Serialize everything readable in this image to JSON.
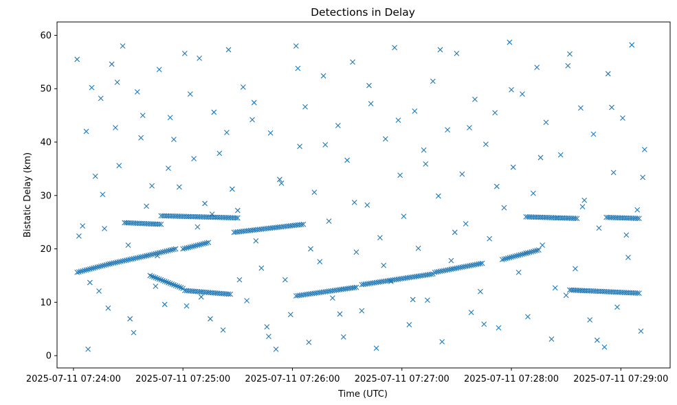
{
  "chart_data": {
    "type": "scatter",
    "title": "Detections in Delay",
    "xlabel": "Time (UTC)",
    "ylabel": "Bistatic Delay (km)",
    "x_unit": "time (UTC)",
    "x_ticks": [
      "2025-07-11 07:24:00",
      "2025-07-11 07:25:00",
      "2025-07-11 07:26:00",
      "2025-07-11 07:27:00",
      "2025-07-11 07:28:00",
      "2025-07-11 07:29:00"
    ],
    "y_ticks": [
      0,
      10,
      20,
      30,
      40,
      50,
      60
    ],
    "xlim": [
      "2025-07-11 07:23:51",
      "2025-07-11 07:29:27"
    ],
    "ylim": [
      -2.3,
      62.5
    ],
    "grid": false,
    "marker": "x",
    "color": "#1f77b4",
    "series": [
      {
        "tracks": [
          {
            "x": [
              "07:24:02",
              "07:24:20",
              "07:24:40",
              "07:24:56"
            ],
            "y": [
              15.6,
              17.2,
              18.7,
              20.0
            ]
          },
          {
            "x": [
              "07:24:28",
              "07:24:48"
            ],
            "y": [
              24.9,
              24.6
            ]
          },
          {
            "x": [
              "07:25:00",
              "07:25:14"
            ],
            "y": [
              20.0,
              21.2
            ]
          },
          {
            "x": [
              "07:24:42",
              "07:25:00"
            ],
            "y": [
              15.0,
              12.6
            ]
          },
          {
            "x": [
              "07:25:01",
              "07:25:26"
            ],
            "y": [
              12.2,
              11.5
            ]
          },
          {
            "x": [
              "07:24:48",
              "07:25:30"
            ],
            "y": [
              26.2,
              25.8
            ]
          },
          {
            "x": [
              "07:25:28",
              "07:26:06"
            ],
            "y": [
              23.1,
              24.6
            ]
          },
          {
            "x": [
              "07:26:02",
              "07:26:35"
            ],
            "y": [
              11.2,
              12.8
            ]
          },
          {
            "x": [
              "07:26:38",
              "07:27:17"
            ],
            "y": [
              13.3,
              15.3
            ]
          },
          {
            "x": [
              "07:27:18",
              "07:27:44"
            ],
            "y": [
              15.6,
              17.3
            ]
          },
          {
            "x": [
              "07:27:55",
              "07:28:15"
            ],
            "y": [
              18.0,
              19.8
            ]
          },
          {
            "x": [
              "07:28:08",
              "07:28:36"
            ],
            "y": [
              26.0,
              25.7
            ]
          },
          {
            "x": [
              "07:28:32",
              "07:29:10"
            ],
            "y": [
              12.3,
              11.7
            ]
          },
          {
            "x": [
              "07:28:52",
              "07:29:10"
            ],
            "y": [
              25.9,
              25.7
            ]
          }
        ],
        "scattered": {
          "x": [
            "07:24:02",
            "07:24:05",
            "07:24:07",
            "07:24:08",
            "07:24:10",
            "07:24:12",
            "07:24:14",
            "07:24:15",
            "07:24:17",
            "07:24:19",
            "07:24:21",
            "07:24:23",
            "07:24:25",
            "07:24:27",
            "07:24:30",
            "07:24:33",
            "07:24:35",
            "07:24:37",
            "07:24:40",
            "07:24:43",
            "07:24:45",
            "07:24:47",
            "07:24:50",
            "07:24:53",
            "07:24:55",
            "07:24:58",
            "07:25:01",
            "07:25:04",
            "07:25:06",
            "07:25:08",
            "07:25:10",
            "07:25:12",
            "07:25:15",
            "07:25:17",
            "07:25:20",
            "07:25:22",
            "07:25:25",
            "07:25:27",
            "07:25:30",
            "07:25:33",
            "07:25:35",
            "07:25:38",
            "07:25:40",
            "07:25:43",
            "07:25:46",
            "07:25:48",
            "07:25:51",
            "07:25:53",
            "07:25:56",
            "07:25:59",
            "07:26:02",
            "07:26:04",
            "07:26:07",
            "07:26:09",
            "07:26:12",
            "07:26:15",
            "07:26:17",
            "07:26:20",
            "07:26:22",
            "07:26:25",
            "07:26:28",
            "07:26:30",
            "07:26:33",
            "07:26:35",
            "07:26:38",
            "07:26:41",
            "07:26:43",
            "07:26:46",
            "07:26:48",
            "07:26:51",
            "07:26:54",
            "07:26:56",
            "07:26:59",
            "07:27:01",
            "07:27:04",
            "07:27:07",
            "07:27:09",
            "07:27:12",
            "07:27:14",
            "07:27:17",
            "07:27:20",
            "07:27:22",
            "07:27:25",
            "07:27:27",
            "07:27:30",
            "07:27:33",
            "07:27:35",
            "07:27:38",
            "07:27:40",
            "07:27:43",
            "07:27:46",
            "07:27:48",
            "07:27:51",
            "07:27:53",
            "07:27:56",
            "07:27:59",
            "07:28:01",
            "07:28:04",
            "07:28:06",
            "07:28:09",
            "07:28:12",
            "07:28:14",
            "07:28:17",
            "07:28:19",
            "07:28:22",
            "07:28:25",
            "07:28:27",
            "07:28:30",
            "07:28:32",
            "07:28:35",
            "07:28:38",
            "07:28:40",
            "07:28:43",
            "07:28:45",
            "07:28:48",
            "07:28:51",
            "07:28:53",
            "07:28:56",
            "07:28:58",
            "07:29:01",
            "07:29:04",
            "07:29:06",
            "07:29:09",
            "07:29:11",
            "07:29:13",
            "07:24:03",
            "07:24:09",
            "07:24:16",
            "07:24:24",
            "07:24:31",
            "07:24:38",
            "07:24:46",
            "07:24:52",
            "07:25:02",
            "07:25:09",
            "07:25:16",
            "07:25:24",
            "07:25:31",
            "07:25:39",
            "07:25:47",
            "07:25:54",
            "07:26:03",
            "07:26:10",
            "07:26:18",
            "07:26:26",
            "07:26:34",
            "07:26:42",
            "07:26:50",
            "07:26:58",
            "07:27:06",
            "07:27:13",
            "07:27:21",
            "07:27:29",
            "07:27:37",
            "07:27:45",
            "07:27:52",
            "07:28:00",
            "07:28:08",
            "07:28:16",
            "07:28:24",
            "07:28:31",
            "07:28:39",
            "07:28:47",
            "07:28:55",
            "07:29:03",
            "07:29:12"
          ],
          "y": [
            55.5,
            24.3,
            42.0,
            1.2,
            50.2,
            33.6,
            12.1,
            48.2,
            23.8,
            8.9,
            54.6,
            42.7,
            35.6,
            58.0,
            20.7,
            4.3,
            49.4,
            40.8,
            28.0,
            31.8,
            13.0,
            53.6,
            9.6,
            44.6,
            40.5,
            31.6,
            56.6,
            49.0,
            36.9,
            24.1,
            11.0,
            28.5,
            6.9,
            45.6,
            37.9,
            4.8,
            57.3,
            31.2,
            27.2,
            50.3,
            10.3,
            44.2,
            21.5,
            16.4,
            5.4,
            41.7,
            1.2,
            33.0,
            14.2,
            7.7,
            58.0,
            39.2,
            46.6,
            2.5,
            30.6,
            17.6,
            52.4,
            25.2,
            10.8,
            43.1,
            3.5,
            36.6,
            55.0,
            19.4,
            8.4,
            28.2,
            47.2,
            1.4,
            22.1,
            40.6,
            13.9,
            57.7,
            33.8,
            26.1,
            5.8,
            45.8,
            20.1,
            38.5,
            10.4,
            51.4,
            29.9,
            2.6,
            42.3,
            17.8,
            56.6,
            34.0,
            24.7,
            8.1,
            48.0,
            12.0,
            39.6,
            21.9,
            45.5,
            5.2,
            27.7,
            58.7,
            35.3,
            15.6,
            49.0,
            7.3,
            30.4,
            54.0,
            20.7,
            43.7,
            3.1,
            25.8,
            37.6,
            11.3,
            56.5,
            16.3,
            46.4,
            29.1,
            6.7,
            41.5,
            23.9,
            1.6,
            52.8,
            34.3,
            9.1,
            44.5,
            18.4,
            58.2,
            27.3,
            4.6,
            38.6,
            22.4,
            13.7,
            30.2,
            51.2,
            6.9,
            45.0,
            18.7,
            35.1,
            9.3,
            55.7,
            26.5,
            41.8,
            14.2,
            47.4,
            3.6,
            32.3,
            53.8,
            20.0,
            39.5,
            7.8,
            28.7,
            50.6,
            16.9,
            44.1,
            10.5,
            35.9,
            57.3,
            23.1,
            42.7,
            5.9,
            31.7,
            49.8,
            19.2,
            37.1,
            12.7,
            54.3,
            27.9,
            2.9,
            46.5,
            22.6,
            33.4
          ]
        }
      }
    ]
  }
}
